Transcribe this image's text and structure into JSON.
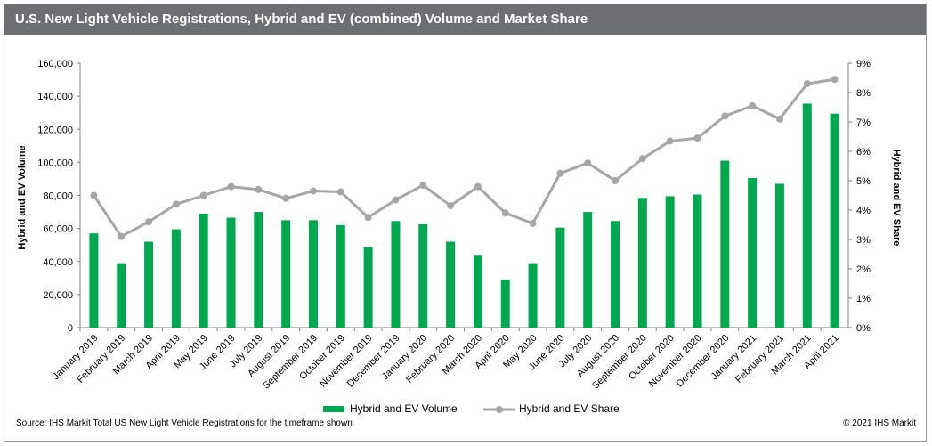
{
  "title": "U.S. New Light Vehicle Registrations, Hybrid and EV (combined) Volume and Market Share",
  "source": "Source: IHS Markit Total US New Light Vehicle Registrations for the timeframe shown",
  "copyright": "© 2021 IHS Markit",
  "colors": {
    "title_bg": "#6d6e71",
    "bar": "#00a84f",
    "line": "#a6a6a6"
  },
  "chart_data": {
    "type": "bar+line",
    "categories": [
      "January 2019",
      "February 2019",
      "March 2019",
      "April 2019",
      "May 2019",
      "June 2019",
      "July 2019",
      "August 2019",
      "September 2019",
      "October 2019",
      "November 2019",
      "December 2019",
      "January 2020",
      "February 2020",
      "March 2020",
      "April 2020",
      "May 2020",
      "June 2020",
      "July 2020",
      "August 2020",
      "September 2020",
      "October 2020",
      "November 2020",
      "December 2020",
      "January 2021",
      "February 2021",
      "March 2021",
      "April 2021"
    ],
    "series": [
      {
        "name": "Hybrid and EV Volume",
        "type": "bar",
        "axis": "left",
        "values": [
          57000,
          39000,
          52000,
          59500,
          69000,
          66500,
          70000,
          65000,
          65000,
          62000,
          48500,
          64500,
          62500,
          52000,
          43500,
          29000,
          39000,
          60500,
          70000,
          64500,
          78500,
          79500,
          80500,
          101000,
          90500,
          87000,
          135500,
          129500
        ]
      },
      {
        "name": "Hybrid and EV Share",
        "type": "line",
        "axis": "right",
        "unit": "%",
        "values": [
          4.5,
          3.1,
          3.6,
          4.2,
          4.5,
          4.8,
          4.7,
          4.4,
          4.65,
          4.62,
          3.75,
          4.35,
          4.85,
          4.15,
          4.8,
          3.9,
          3.55,
          5.25,
          5.6,
          5.0,
          5.75,
          6.35,
          6.45,
          7.2,
          7.55,
          7.1,
          8.3,
          8.45
        ]
      }
    ],
    "left_axis": {
      "label": "Hybrid and EV Volume",
      "min": 0,
      "max": 160000,
      "step": 20000,
      "tick_labels": [
        "0",
        "20,000",
        "40,000",
        "60,000",
        "80,000",
        "100,000",
        "120,000",
        "140,000",
        "160,000"
      ]
    },
    "right_axis": {
      "label": "Hybrid and EV Share",
      "min": 0,
      "max": 9,
      "step": 1,
      "tick_labels": [
        "0%",
        "1%",
        "2%",
        "3%",
        "4%",
        "5%",
        "6%",
        "7%",
        "8%",
        "9%"
      ]
    },
    "grid": false,
    "legend": "bottom-center"
  }
}
